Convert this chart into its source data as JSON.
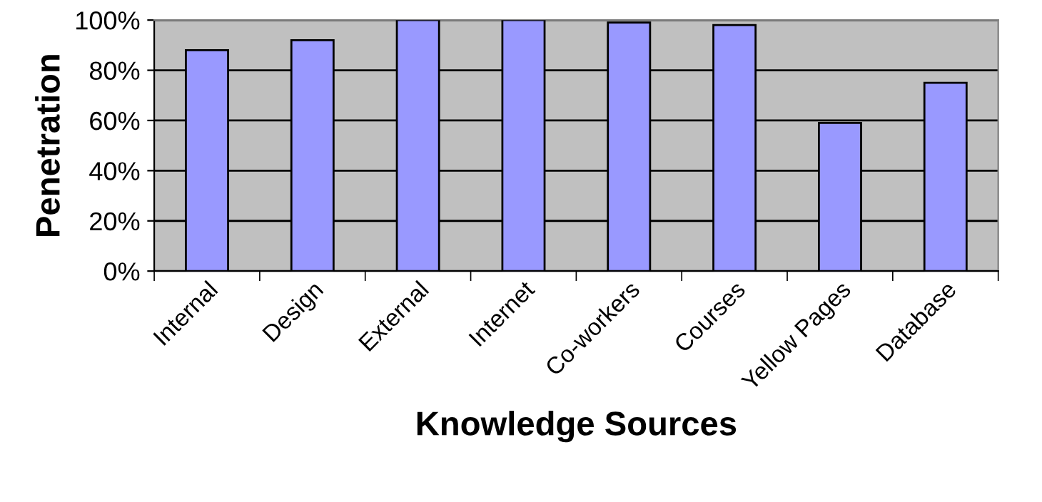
{
  "chart_data": {
    "type": "bar",
    "xlabel": "Knowledge Sources",
    "ylabel": "Penetration",
    "categories": [
      "Internal",
      "Design",
      "External",
      "Internet",
      "Co-workers",
      "Courses",
      "Yellow Pages",
      "Database"
    ],
    "values": [
      88,
      92,
      100,
      100,
      99,
      98,
      59,
      75
    ],
    "color": "#9999ff",
    "ylim": [
      0,
      100
    ],
    "yticks": [
      {
        "value": 0,
        "label": "0%"
      },
      {
        "value": 20,
        "label": "20%"
      },
      {
        "value": 40,
        "label": "40%"
      },
      {
        "value": 60,
        "label": "60%"
      },
      {
        "value": 80,
        "label": "80%"
      },
      {
        "value": 100,
        "label": "100%"
      }
    ],
    "grid": "y",
    "legend": false
  }
}
